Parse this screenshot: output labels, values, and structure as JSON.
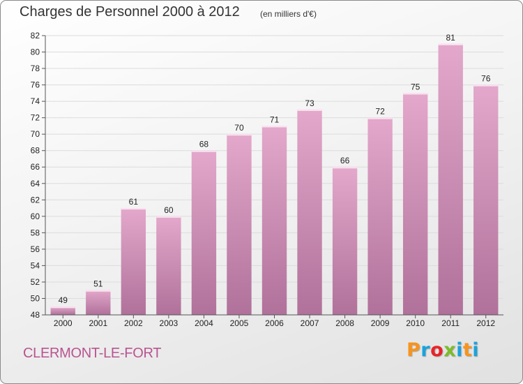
{
  "header": {
    "title": "Charges de Personnel 2000 à 2012",
    "subtitle": "(en milliers d'€)"
  },
  "footer": {
    "commune": "CLERMONT-LE-FORT",
    "brand": "Proxiti"
  },
  "colors": {
    "bar_light": "#e3a8cb",
    "bar_dark": "#b0719a",
    "bar_edge": "#fbe3f0",
    "axis": "#555555",
    "grid": "#dcdcdc",
    "brand_letters": [
      "#f7941d",
      "#1aa3dd",
      "#e8242a",
      "#7bbd2a",
      "#1aa3dd",
      "#f7941d",
      "#1aa3dd"
    ]
  },
  "chart_data": {
    "type": "bar",
    "categories": [
      "2000",
      "2001",
      "2002",
      "2003",
      "2004",
      "2005",
      "2006",
      "2007",
      "2008",
      "2009",
      "2010",
      "2011",
      "2012"
    ],
    "values": [
      49,
      51,
      61,
      60,
      68,
      70,
      71,
      73,
      66,
      72,
      75,
      81,
      76
    ],
    "title": "Charges de Personnel 2000 à 2012",
    "subtitle": "(en milliers d'€)",
    "xlabel": "",
    "ylabel": "",
    "ylim": [
      48,
      82
    ],
    "yticks": [
      48,
      50,
      52,
      54,
      56,
      58,
      60,
      62,
      64,
      66,
      68,
      70,
      72,
      74,
      76,
      78,
      80,
      82
    ],
    "grid": true,
    "legend": "none"
  }
}
